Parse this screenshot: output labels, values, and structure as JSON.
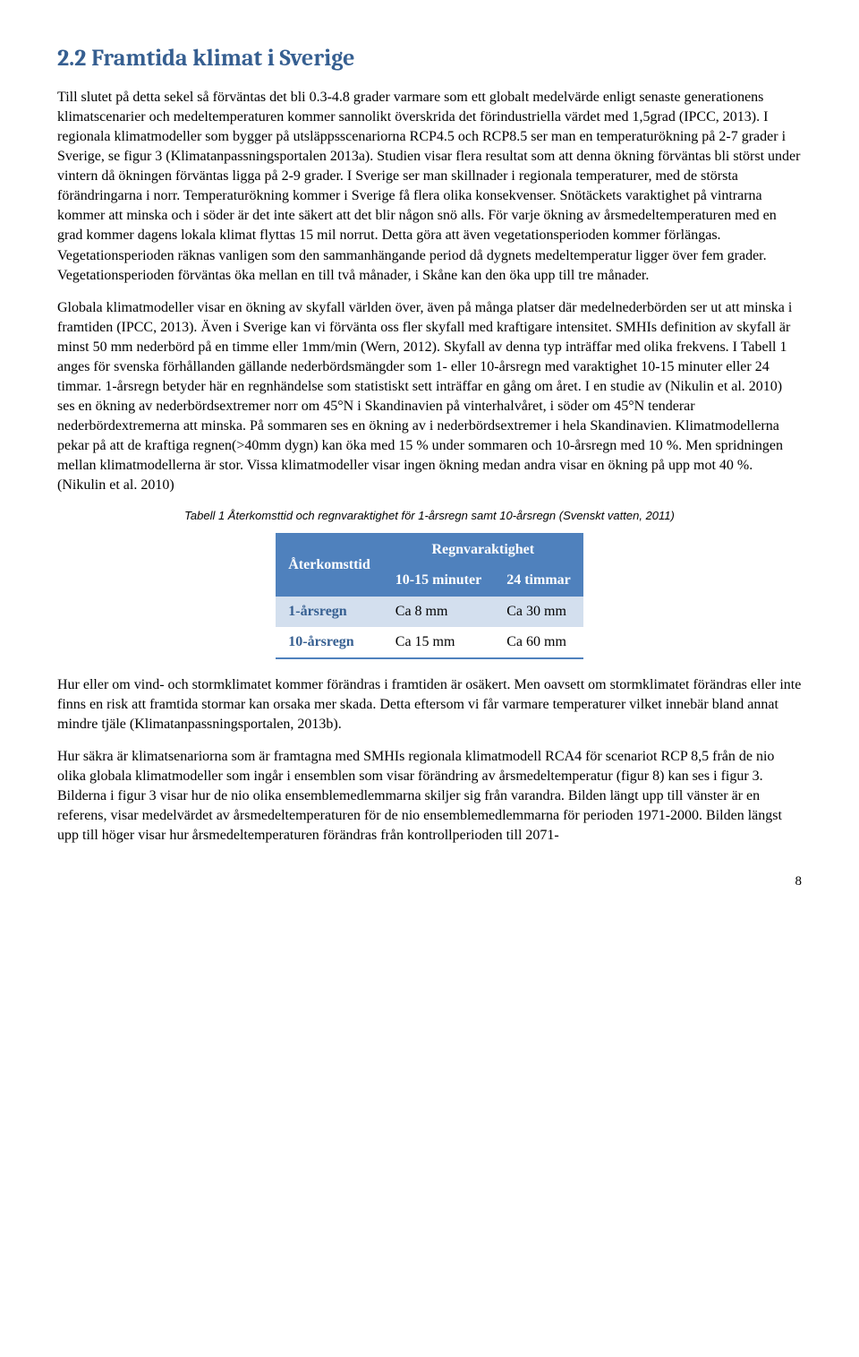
{
  "heading": "2.2 Framtida klimat i Sverige",
  "paragraphs": {
    "p1": "Till slutet på detta sekel så förväntas det bli 0.3-4.8 grader varmare som ett globalt medelvärde enligt senaste generationens klimatscenarier och medeltemperaturen kommer sannolikt överskrida det förindustriella värdet med 1,5grad (IPCC, 2013). I regionala klimatmodeller som bygger på utsläppsscenariorna RCP4.5 och RCP8.5 ser man en temperaturökning på 2-7 grader i Sverige, se figur 3 (Klimatanpassningsportalen 2013a). Studien visar flera resultat som att denna ökning förväntas bli störst under vintern då ökningen förväntas ligga på 2-9 grader. I Sverige ser man skillnader i regionala temperaturer, med de största förändringarna i norr. Temperaturökning kommer i Sverige få flera olika konsekvenser. Snötäckets varaktighet på vintrarna kommer att minska och i söder är det inte säkert att det blir någon snö alls. För varje ökning av årsmedeltemperaturen med en grad kommer dagens lokala klimat flyttas 15 mil norrut. Detta göra att även vegetationsperioden kommer förlängas. Vegetationsperioden räknas vanligen som den sammanhängande period då dygnets medeltemperatur ligger över fem grader. Vegetationsperioden förväntas öka mellan en till två månader, i Skåne kan den öka upp till tre månader.",
    "p2": "Globala klimatmodeller visar en ökning av skyfall världen över, även på många platser där medelnederbörden ser ut att minska i framtiden (IPCC, 2013). Även i Sverige kan vi förvänta oss fler skyfall med kraftigare intensitet. SMHIs definition av skyfall är minst 50 mm nederbörd på en timme eller 1mm/min (Wern, 2012). Skyfall av denna typ inträffar med olika frekvens. I Tabell 1 anges för svenska förhållanden gällande nederbördsmängder som 1- eller 10-årsregn med varaktighet 10-15 minuter eller 24 timmar. 1-årsregn betyder här en regnhändelse som statistiskt sett inträffar en gång om året.  I en studie av (Nikulin et al. 2010) ses en ökning av nederbördsextremer norr om 45°N i Skandinavien på vinterhalvåret, i söder om 45°N tenderar nederbördextremerna att minska. På sommaren ses en ökning av i nederbördsextremer i hela Skandinavien. Klimatmodellerna pekar på att de kraftiga regnen(>40mm dygn) kan öka med 15 % under sommaren och 10-årsregn med 10 %. Men spridningen mellan klimatmodellerna är stor. Vissa klimatmodeller visar ingen ökning medan andra visar en ökning på upp mot 40 %. (Nikulin et al. 2010)",
    "p3": "Hur eller om vind- och stormklimatet kommer förändras i framtiden är osäkert. Men oavsett om stormklimatet förändras eller inte finns en risk att framtida stormar kan orsaka mer skada. Detta eftersom vi får varmare temperaturer vilket innebär bland annat mindre tjäle (Klimatanpassningsportalen, 2013b).",
    "p4": "Hur säkra är klimatsenariorna som är framtagna med SMHIs regionala klimatmodell RCA4 för scenariot RCP 8,5 från de nio olika globala klimatmodeller som ingår i ensemblen som visar förändring av årsmedeltemperatur (figur 8) kan ses i figur 3. Bilderna i figur 3 visar hur de nio olika ensemblemedlemmarna skiljer sig från varandra. Bilden längt upp till vänster är en referens, visar medelvärdet av årsmedeltemperaturen för de nio ensemblemedlemmarna för perioden 1971-2000. Bilden längst upp till höger visar hur årsmedeltemperaturen förändras från kontrollperioden till 2071-"
  },
  "table": {
    "caption": "Tabell 1 Återkomsttid och regnvaraktighet för 1-årsregn samt 10-årsregn (Svenskt vatten, 2011)",
    "corner": "Återkomsttid",
    "spanHeader": "Regnvaraktighet",
    "columns": [
      "10-15 minuter",
      "24 timmar"
    ],
    "rows": [
      {
        "label": "1-årsregn",
        "cells": [
          "Ca 8 mm",
          "Ca 30 mm"
        ]
      },
      {
        "label": "10-årsregn",
        "cells": [
          "Ca 15 mm",
          "Ca 60 mm"
        ]
      }
    ],
    "colors": {
      "header_bg": "#4f81bd",
      "header_fg": "#ffffff",
      "row_alt_bg": "#d3dfee",
      "row_bg": "#ffffff",
      "rowlabel_fg": "#365f91",
      "border": "#4f81bd"
    }
  },
  "pageNumber": "8"
}
